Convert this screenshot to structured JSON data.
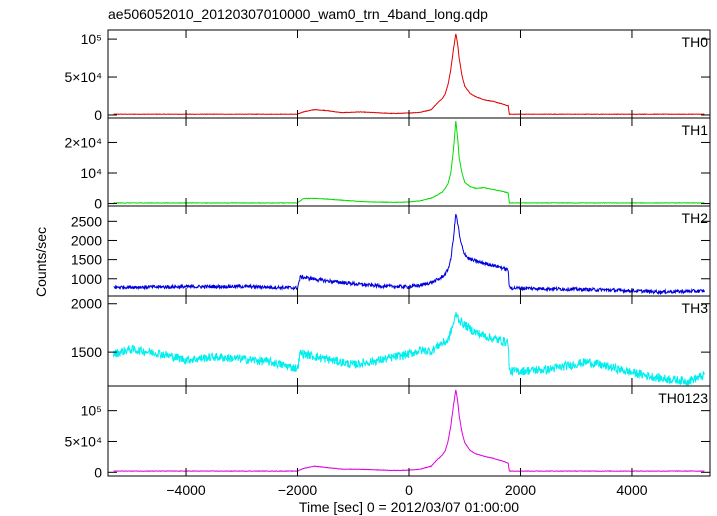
{
  "chart_data": {
    "type": "line",
    "title": "ae506052010_20120307010000_wam0_trn_4band_long.qdp",
    "xlabel": "Time [sec] 0 = 2012/03/07 01:00:00",
    "ylabel": "Counts/sec",
    "xlim": [
      -5400,
      5400
    ],
    "x_ticks": [
      -4000,
      -2000,
      0,
      2000,
      4000
    ],
    "x_tick_labels": [
      "−4000",
      "−2000",
      "0",
      "2000",
      "4000"
    ],
    "x_range_data": [
      -5300,
      5300
    ],
    "panels": [
      {
        "name": "TH0",
        "color": "#e00000",
        "ylim": [
          -4000,
          112000
        ],
        "yticks": [
          {
            "v": 0,
            "label": "0"
          },
          {
            "v": 50000,
            "label": "5×10⁴"
          },
          {
            "v": 100000,
            "label": "10⁵"
          }
        ],
        "noise": 300,
        "x": [
          -5300,
          -2000,
          -1900,
          -1700,
          -1500,
          -1200,
          -900,
          -600,
          -300,
          0,
          200,
          400,
          500,
          600,
          650,
          700,
          750,
          800,
          840,
          870,
          900,
          950,
          1000,
          1100,
          1200,
          1350,
          1500,
          1650,
          1780,
          1800,
          2500,
          3500,
          4500,
          5300
        ],
        "y": [
          1000,
          1000,
          4000,
          7000,
          6000,
          3000,
          4000,
          3000,
          2000,
          2500,
          3500,
          7000,
          15000,
          22000,
          28000,
          40000,
          60000,
          88000,
          107000,
          95000,
          75000,
          52000,
          38000,
          28000,
          24000,
          20000,
          18000,
          15000,
          12000,
          1000,
          1000,
          1000,
          1000,
          1000
        ]
      },
      {
        "name": "TH1",
        "color": "#00dd00",
        "ylim": [
          -800,
          28000
        ],
        "yticks": [
          {
            "v": 0,
            "label": "0"
          },
          {
            "v": 10000,
            "label": "10⁴"
          },
          {
            "v": 20000,
            "label": "2×10⁴"
          }
        ],
        "noise": 80,
        "x": [
          -5300,
          -2000,
          -1900,
          -1700,
          -1500,
          -1200,
          -900,
          -600,
          -300,
          0,
          200,
          400,
          500,
          600,
          650,
          700,
          750,
          800,
          840,
          870,
          900,
          950,
          1000,
          1100,
          1200,
          1350,
          1500,
          1650,
          1780,
          1800,
          2500,
          3500,
          4500,
          5300
        ],
        "y": [
          200,
          200,
          1600,
          1700,
          1500,
          1100,
          700,
          500,
          400,
          500,
          900,
          1800,
          2700,
          3800,
          5000,
          6500,
          10000,
          18000,
          27000,
          22000,
          15000,
          10000,
          7000,
          5500,
          5000,
          5200,
          4600,
          4100,
          3500,
          200,
          200,
          200,
          200,
          200
        ]
      },
      {
        "name": "TH2",
        "color": "#0000dd",
        "ylim": [
          550,
          2900
        ],
        "yticks": [
          {
            "v": 1000,
            "label": "1000"
          },
          {
            "v": 1500,
            "label": "1500"
          },
          {
            "v": 2000,
            "label": "2000"
          },
          {
            "v": 2500,
            "label": "2500"
          }
        ],
        "noise": 45,
        "x": [
          -5300,
          -4000,
          -3000,
          -2000,
          -1950,
          -1500,
          -1000,
          -500,
          0,
          200,
          400,
          550,
          650,
          700,
          750,
          800,
          840,
          880,
          920,
          980,
          1050,
          1150,
          1300,
          1450,
          1600,
          1780,
          1800,
          2500,
          3500,
          4500,
          5300
        ],
        "y": [
          780,
          790,
          800,
          760,
          1050,
          950,
          870,
          810,
          790,
          830,
          900,
          1000,
          1120,
          1250,
          1500,
          2100,
          2700,
          2400,
          2000,
          1700,
          1550,
          1480,
          1420,
          1370,
          1320,
          1230,
          760,
          740,
          710,
          660,
          680
        ]
      },
      {
        "name": "TH3",
        "color": "#00eeee",
        "ylim": [
          1150,
          2080
        ],
        "yticks": [
          {
            "v": 1500,
            "label": "1500"
          },
          {
            "v": 2000,
            "label": "2000"
          }
        ],
        "noise": 45,
        "x": [
          -5300,
          -5000,
          -4500,
          -4000,
          -3500,
          -3000,
          -2500,
          -2000,
          -1950,
          -1500,
          -1000,
          -500,
          0,
          200,
          400,
          550,
          700,
          800,
          850,
          900,
          1000,
          1200,
          1500,
          1780,
          1800,
          2500,
          3200,
          4000,
          4500,
          5000,
          5300
        ],
        "y": [
          1480,
          1530,
          1490,
          1420,
          1450,
          1430,
          1400,
          1330,
          1490,
          1430,
          1370,
          1420,
          1480,
          1520,
          1510,
          1580,
          1620,
          1800,
          1900,
          1830,
          1780,
          1700,
          1640,
          1600,
          1300,
          1320,
          1400,
          1290,
          1230,
          1200,
          1260
        ]
      },
      {
        "name": "TH0123",
        "color": "#dd00dd",
        "ylim": [
          -6000,
          140000
        ],
        "yticks": [
          {
            "v": 0,
            "label": "0"
          },
          {
            "v": 50000,
            "label": "5×10⁴"
          },
          {
            "v": 100000,
            "label": "10⁵"
          }
        ],
        "noise": 350,
        "x": [
          -5300,
          -2000,
          -1900,
          -1700,
          -1500,
          -1200,
          -900,
          -600,
          -300,
          0,
          200,
          400,
          500,
          600,
          650,
          700,
          750,
          800,
          840,
          870,
          900,
          950,
          1000,
          1100,
          1200,
          1350,
          1500,
          1650,
          1780,
          1800,
          2500,
          3500,
          4500,
          5300
        ],
        "y": [
          2000,
          2000,
          6000,
          10000,
          8000,
          5000,
          5000,
          4000,
          3000,
          3500,
          5000,
          10000,
          20000,
          28000,
          35000,
          50000,
          75000,
          110000,
          134000,
          118000,
          92000,
          65000,
          48000,
          35000,
          30000,
          26000,
          23000,
          19000,
          15000,
          2000,
          2000,
          2000,
          2000,
          2000
        ]
      }
    ]
  }
}
